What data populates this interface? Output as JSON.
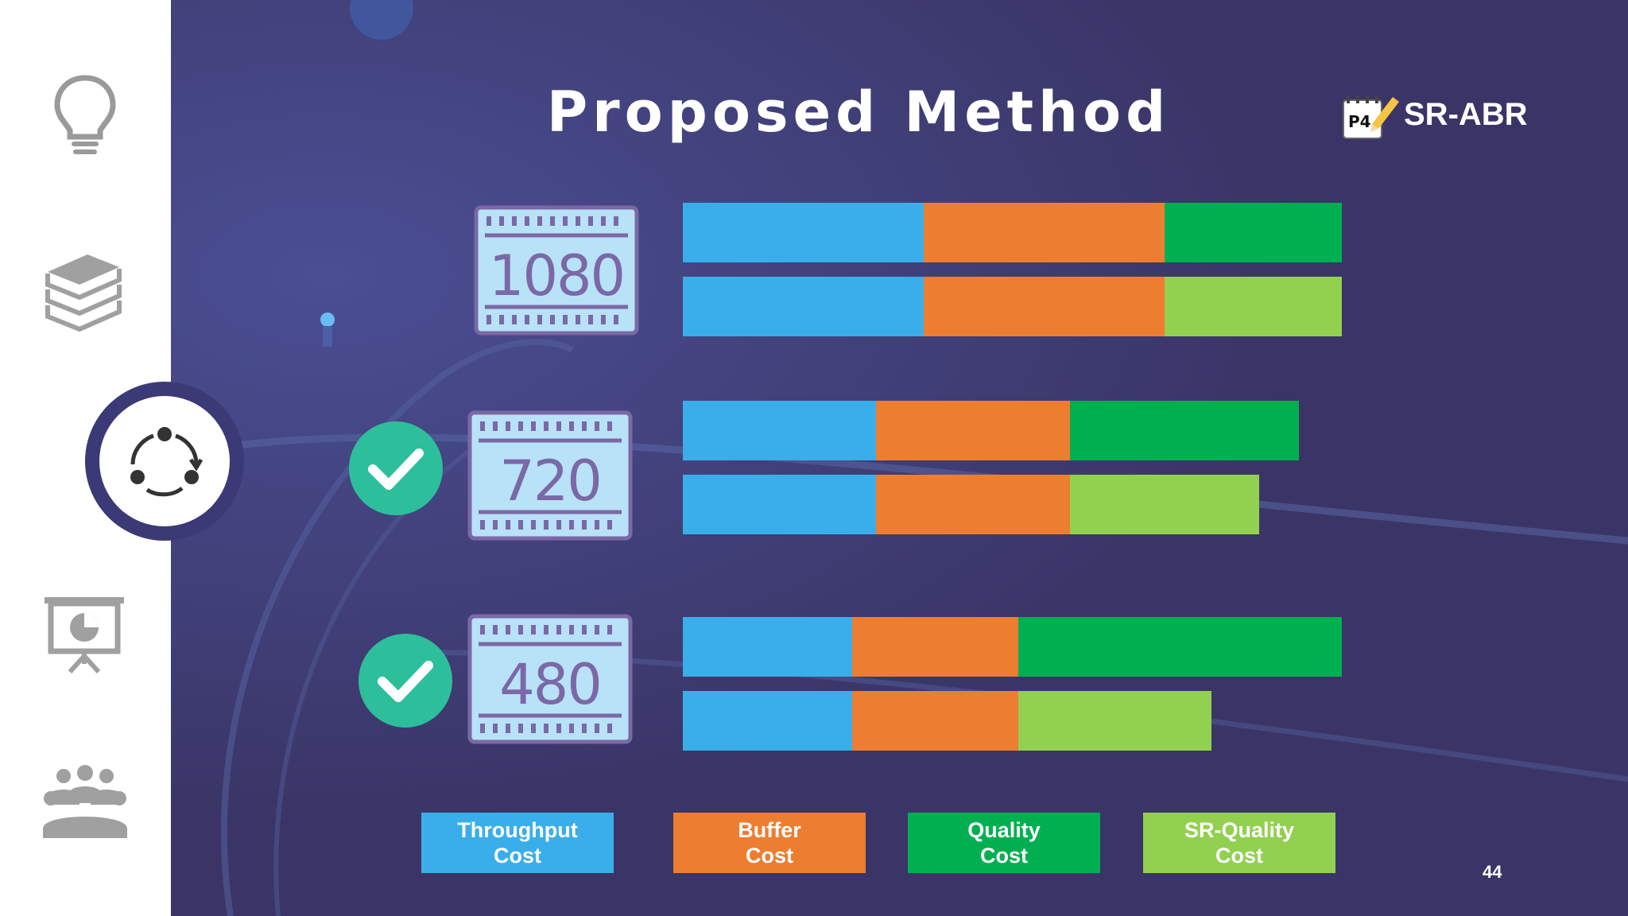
{
  "slide": {
    "title": "Proposed Method",
    "brand": {
      "badge": "P4",
      "text": "SR-ABR"
    },
    "page_number": "44"
  },
  "sidebar": {
    "items": [
      {
        "icon": "lightbulb-icon",
        "active": false
      },
      {
        "icon": "books-icon",
        "active": false
      },
      {
        "icon": "cycle-icon",
        "active": true
      },
      {
        "icon": "presentation-chart-icon",
        "active": false
      },
      {
        "icon": "people-group-icon",
        "active": false
      }
    ]
  },
  "colors": {
    "throughput": "#3aaeea",
    "buffer": "#ed7d31",
    "quality": "#00b050",
    "sr_quality": "#92d050",
    "check": "#2dbf9c",
    "background": "#3a3566"
  },
  "chart_data": {
    "type": "bar",
    "orientation": "horizontal",
    "stacked": true,
    "categories": [
      "1080",
      "720",
      "480"
    ],
    "rows_per_category": [
      "Quality",
      "SR-Quality"
    ],
    "groups": [
      {
        "resolution": "1080",
        "checked": false,
        "rows": [
          {
            "throughput": 30.5,
            "buffer": 30.5,
            "quality": 22.5
          },
          {
            "throughput": 30.5,
            "buffer": 30.5,
            "sr_quality": 22.5
          }
        ]
      },
      {
        "resolution": "720",
        "checked": true,
        "rows": [
          {
            "throughput": 24.5,
            "buffer": 24.5,
            "quality": 29
          },
          {
            "throughput": 24.5,
            "buffer": 24.5,
            "sr_quality": 24
          }
        ]
      },
      {
        "resolution": "480",
        "checked": true,
        "rows": [
          {
            "throughput": 21.5,
            "buffer": 21,
            "quality": 41
          },
          {
            "throughput": 21.5,
            "buffer": 21,
            "sr_quality": 24.5
          }
        ]
      }
    ],
    "legend": [
      {
        "key": "throughput",
        "label_line1": "Throughput",
        "label_line2": "Cost"
      },
      {
        "key": "buffer",
        "label_line1": "Buffer",
        "label_line2": "Cost"
      },
      {
        "key": "quality",
        "label_line1": "Quality",
        "label_line2": "Cost"
      },
      {
        "key": "sr_quality",
        "label_line1": "SR-Quality",
        "label_line2": "Cost"
      }
    ]
  }
}
